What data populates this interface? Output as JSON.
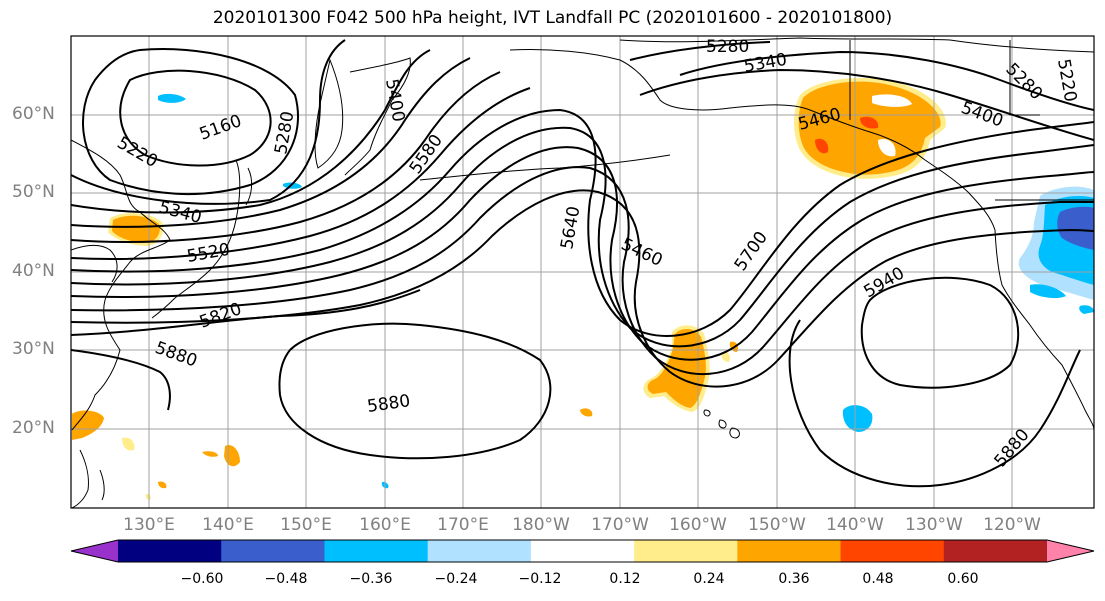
{
  "title": "2020101300 F042 500 hPa height, IVT Landfall PC (2020101600 - 2020101800)",
  "lat_labels": [
    "60°N",
    "50°N",
    "40°N",
    "30°N",
    "20°N"
  ],
  "lon_labels": [
    "130°E",
    "140°E",
    "150°E",
    "160°E",
    "170°E",
    "180°W",
    "170°W",
    "160°W",
    "150°W",
    "140°W",
    "130°W",
    "120°W"
  ],
  "colorbar": {
    "ticks": [
      "−0.60",
      "−0.48",
      "−0.36",
      "−0.24",
      "−0.12",
      "0.12",
      "0.24",
      "0.36",
      "0.48",
      "0.60"
    ],
    "colors": [
      "#9932cc",
      "#000080",
      "#3a5fcd",
      "#00bfff",
      "#b0e2ff",
      "#ffffff",
      "#ffec8b",
      "#ffa500",
      "#ff4500",
      "#b22222",
      "#ff82ab"
    ]
  },
  "contour_labels": [
    "5280",
    "5340",
    "5400",
    "5460",
    "5220",
    "5160",
    "5280",
    "5400",
    "5580",
    "5340",
    "5520",
    "5820",
    "5880",
    "5640",
    "5460",
    "5700",
    "5940",
    "5880",
    "5880",
    "5280",
    "5220"
  ]
}
